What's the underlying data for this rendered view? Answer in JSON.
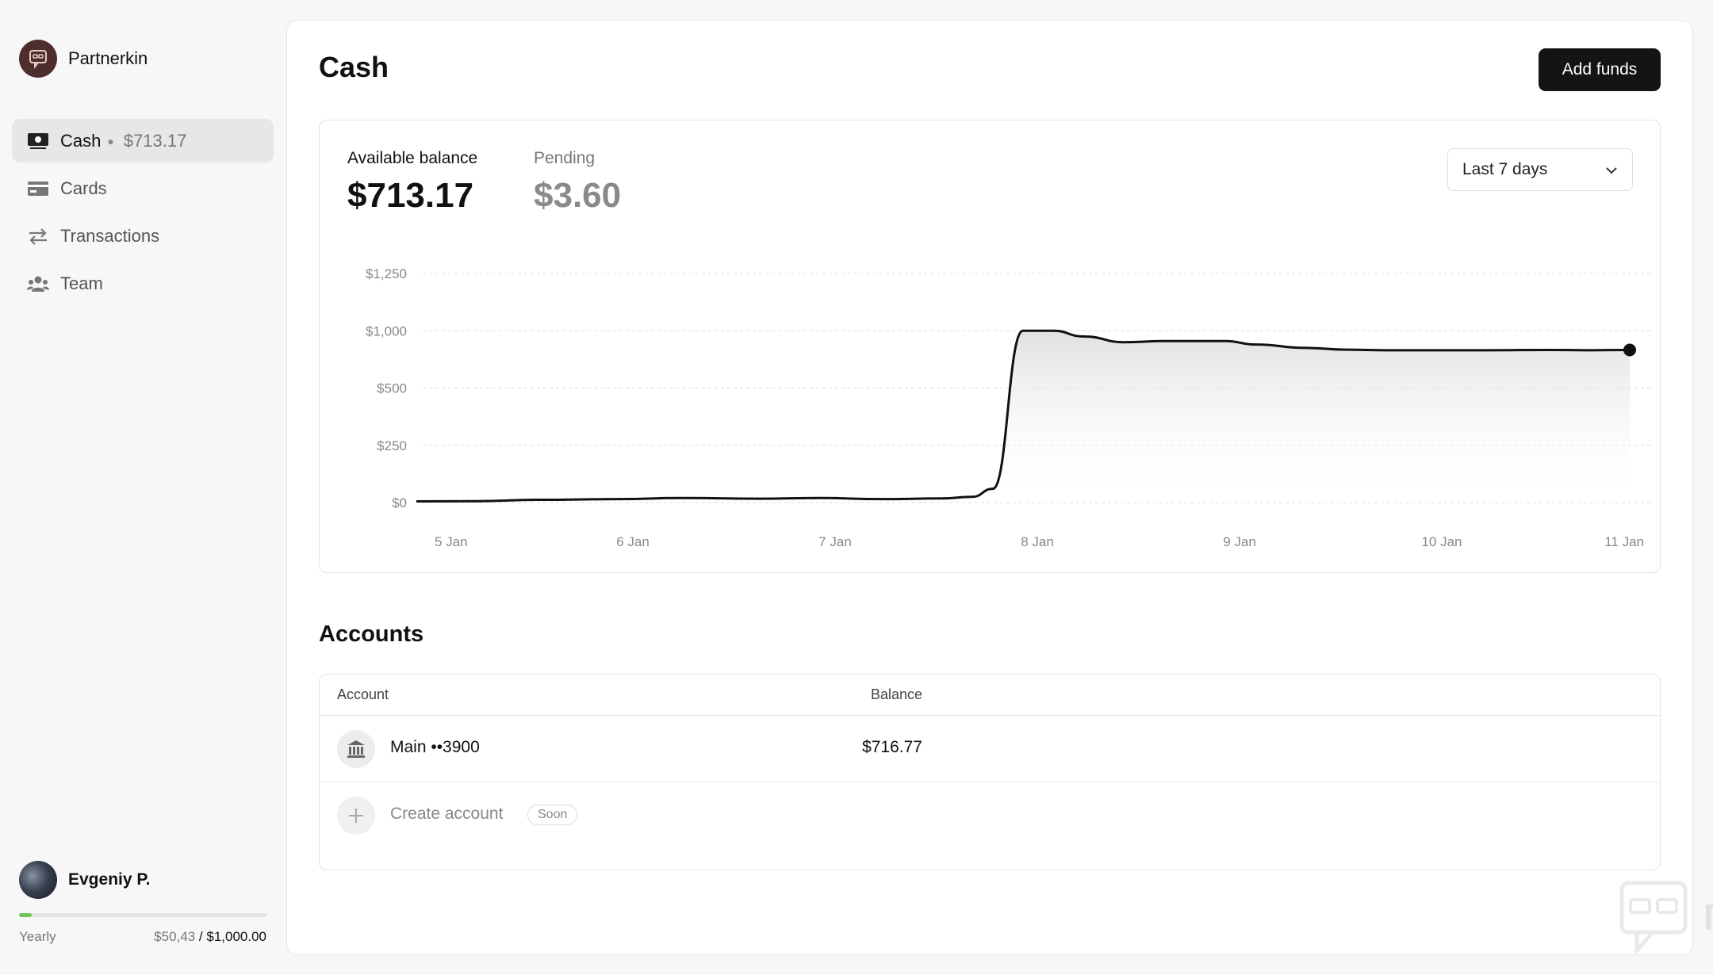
{
  "org": {
    "name": "Partnerkin"
  },
  "nav": {
    "items": [
      {
        "label": "Cash",
        "sub": "$713.17",
        "icon": "cash-icon",
        "active": true
      },
      {
        "label": "Cards",
        "icon": "card-icon"
      },
      {
        "label": "Transactions",
        "icon": "transactions-icon"
      },
      {
        "label": "Team",
        "icon": "team-icon"
      }
    ]
  },
  "user": {
    "name": "Evgeniy P.",
    "plan": "Yearly",
    "spent": "$50,43",
    "separator": "/",
    "limit": "$1,000.00",
    "progress": 0.05
  },
  "main": {
    "title": "Cash",
    "add_funds": "Add funds",
    "available_label": "Available balance",
    "available_value": "$713.17",
    "pending_label": "Pending",
    "pending_value": "$3.60",
    "range": "Last 7 days",
    "accounts_title": "Accounts",
    "accounts_columns": [
      "Account",
      "Balance"
    ],
    "accounts": [
      {
        "name": "Main ••3900",
        "balance": "$716.77"
      }
    ],
    "create_account": "Create account",
    "soon": "Soon"
  },
  "chart_data": {
    "type": "area",
    "x_labels": [
      "5 Jan",
      "6 Jan",
      "7 Jan",
      "8 Jan",
      "9 Jan",
      "10 Jan",
      "11 Jan"
    ],
    "y_ticks": [
      "$0",
      "$250",
      "$500",
      "$1,000",
      "$1,250"
    ],
    "y_tick_values": [
      0,
      250,
      500,
      1000,
      1250
    ],
    "points": [
      [
        0,
        5
      ],
      [
        0.3,
        6
      ],
      [
        0.6,
        12
      ],
      [
        1,
        15
      ],
      [
        1.3,
        20
      ],
      [
        1.7,
        17
      ],
      [
        2,
        20
      ],
      [
        2.3,
        15
      ],
      [
        2.6,
        18
      ],
      [
        2.75,
        25
      ],
      [
        2.85,
        60
      ],
      [
        3.0,
        1000
      ],
      [
        3.15,
        1000
      ],
      [
        3.3,
        950
      ],
      [
        3.5,
        900
      ],
      [
        3.7,
        910
      ],
      [
        4.0,
        910
      ],
      [
        4.15,
        880
      ],
      [
        4.4,
        850
      ],
      [
        4.6,
        835
      ],
      [
        4.8,
        830
      ],
      [
        5.0,
        830
      ],
      [
        5.3,
        830
      ],
      [
        5.6,
        832
      ],
      [
        5.8,
        830
      ],
      [
        6.0,
        832
      ]
    ],
    "ylim": [
      0,
      1250
    ],
    "grid": true,
    "color": "#111111"
  },
  "watermark": {
    "text": "ПАРТНЕРКИН"
  }
}
